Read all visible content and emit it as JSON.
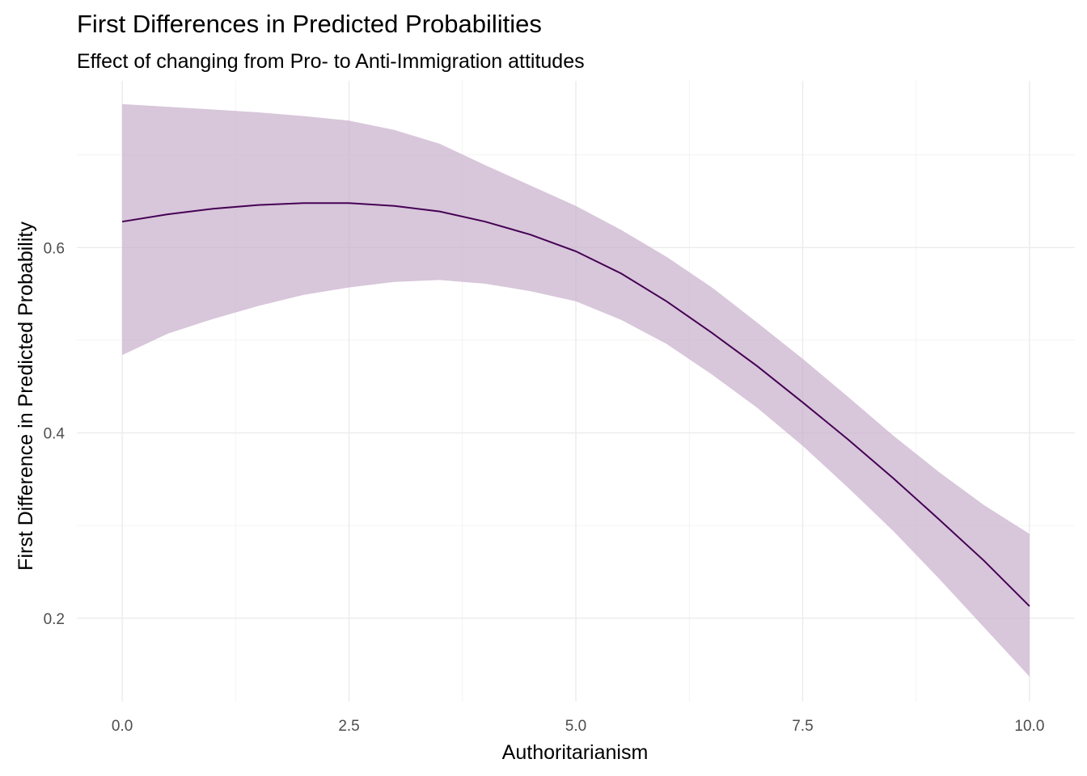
{
  "chart_data": {
    "type": "line",
    "title": "First Differences in Predicted Probabilities",
    "subtitle": "Effect of changing from Pro- to Anti-Immigration attitudes",
    "xlabel": "Authoritarianism",
    "ylabel": "First Difference in Predicted Probability",
    "xlim": [
      -0.5,
      10.5
    ],
    "ylim": [
      0.11,
      0.78
    ],
    "x_ticks": [
      0,
      2.5,
      5,
      7.5,
      10
    ],
    "x_tick_labels": [
      "0.0",
      "2.5",
      "5.0",
      "7.5",
      "10.0"
    ],
    "y_ticks": [
      0.2,
      0.4,
      0.6
    ],
    "y_tick_labels": [
      "0.2",
      "0.4",
      "0.6"
    ],
    "grid": true,
    "line_color": "#440154",
    "ribbon_color": "#c8aecb",
    "series": [
      {
        "x": [
          0,
          0.5,
          1,
          1.5,
          2,
          2.5,
          3,
          3.5,
          4,
          4.5,
          5,
          5.5,
          6,
          6.5,
          7,
          7.5,
          8,
          8.5,
          9,
          9.5,
          10
        ],
        "y": [
          0.628,
          0.636,
          0.642,
          0.646,
          0.648,
          0.648,
          0.645,
          0.639,
          0.628,
          0.614,
          0.596,
          0.572,
          0.542,
          0.508,
          0.472,
          0.433,
          0.393,
          0.351,
          0.307,
          0.262,
          0.213
        ],
        "lower": [
          0.484,
          0.507,
          0.523,
          0.537,
          0.549,
          0.557,
          0.563,
          0.565,
          0.561,
          0.553,
          0.542,
          0.522,
          0.496,
          0.463,
          0.427,
          0.386,
          0.341,
          0.294,
          0.243,
          0.19,
          0.137
        ],
        "upper": [
          0.755,
          0.752,
          0.749,
          0.746,
          0.742,
          0.737,
          0.727,
          0.712,
          0.689,
          0.667,
          0.645,
          0.619,
          0.59,
          0.557,
          0.519,
          0.48,
          0.439,
          0.397,
          0.358,
          0.322,
          0.291
        ]
      }
    ]
  }
}
